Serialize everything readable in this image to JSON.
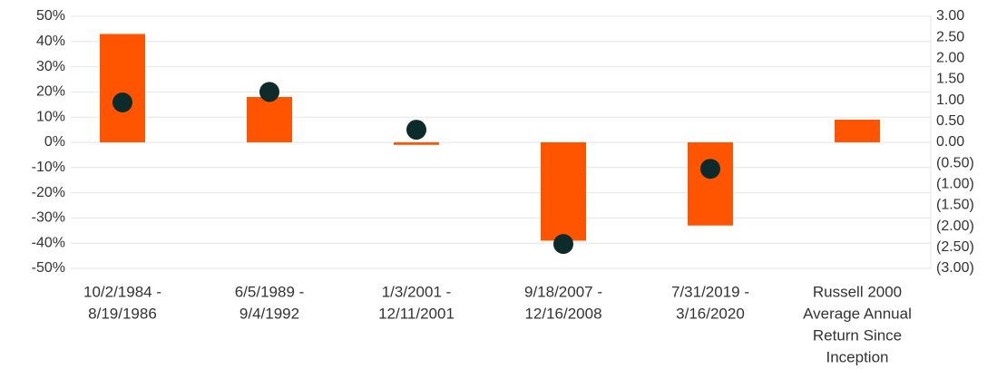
{
  "chart_data": {
    "type": "bar",
    "categories": [
      [
        "10/2/1984 -",
        "8/19/1986"
      ],
      [
        "6/5/1989 -",
        "9/4/1992"
      ],
      [
        "1/3/2001 -",
        "12/11/2001"
      ],
      [
        "9/18/2007 -",
        "12/16/2008"
      ],
      [
        "7/31/2019 -",
        "3/16/2020"
      ],
      [
        "Russell 2000",
        "Average Annual",
        "Return Since",
        "Inception"
      ]
    ],
    "series": [
      {
        "type": "bar",
        "color": "#ff5500",
        "values": [
          43,
          18,
          -1,
          -39,
          -33,
          9
        ]
      },
      {
        "type": "scatter",
        "axis": "y2",
        "color": "#0e2b2b",
        "values": [
          0.95,
          1.2,
          0.3,
          -2.42,
          -0.63,
          null
        ]
      }
    ],
    "ylim": [
      -50,
      50
    ],
    "yticks": [
      {
        "value": -50,
        "label": "-50%"
      },
      {
        "value": -40,
        "label": "-40%"
      },
      {
        "value": -30,
        "label": "-30%"
      },
      {
        "value": -20,
        "label": "-20%"
      },
      {
        "value": -10,
        "label": "-10%"
      },
      {
        "value": 0,
        "label": "0%"
      },
      {
        "value": 10,
        "label": "10%"
      },
      {
        "value": 20,
        "label": "20%"
      },
      {
        "value": 30,
        "label": "30%"
      },
      {
        "value": 40,
        "label": "40%"
      },
      {
        "value": 50,
        "label": "50%"
      }
    ],
    "y2lim": [
      -3,
      3
    ],
    "y2ticks": [
      {
        "value": -3,
        "label": "(3.00)"
      },
      {
        "value": -2.5,
        "label": "(2.50)"
      },
      {
        "value": -2,
        "label": "(2.00)"
      },
      {
        "value": -1.5,
        "label": "(1.50)"
      },
      {
        "value": -1,
        "label": "(1.00)"
      },
      {
        "value": -0.5,
        "label": "(0.50)"
      },
      {
        "value": 0,
        "label": "0.00"
      },
      {
        "value": 0.5,
        "label": "0.50"
      },
      {
        "value": 1,
        "label": "1.00"
      },
      {
        "value": 1.5,
        "label": "1.50"
      },
      {
        "value": 2,
        "label": "2.00"
      },
      {
        "value": 2.5,
        "label": "2.50"
      },
      {
        "value": 3,
        "label": "3.00"
      }
    ],
    "grid": true
  }
}
